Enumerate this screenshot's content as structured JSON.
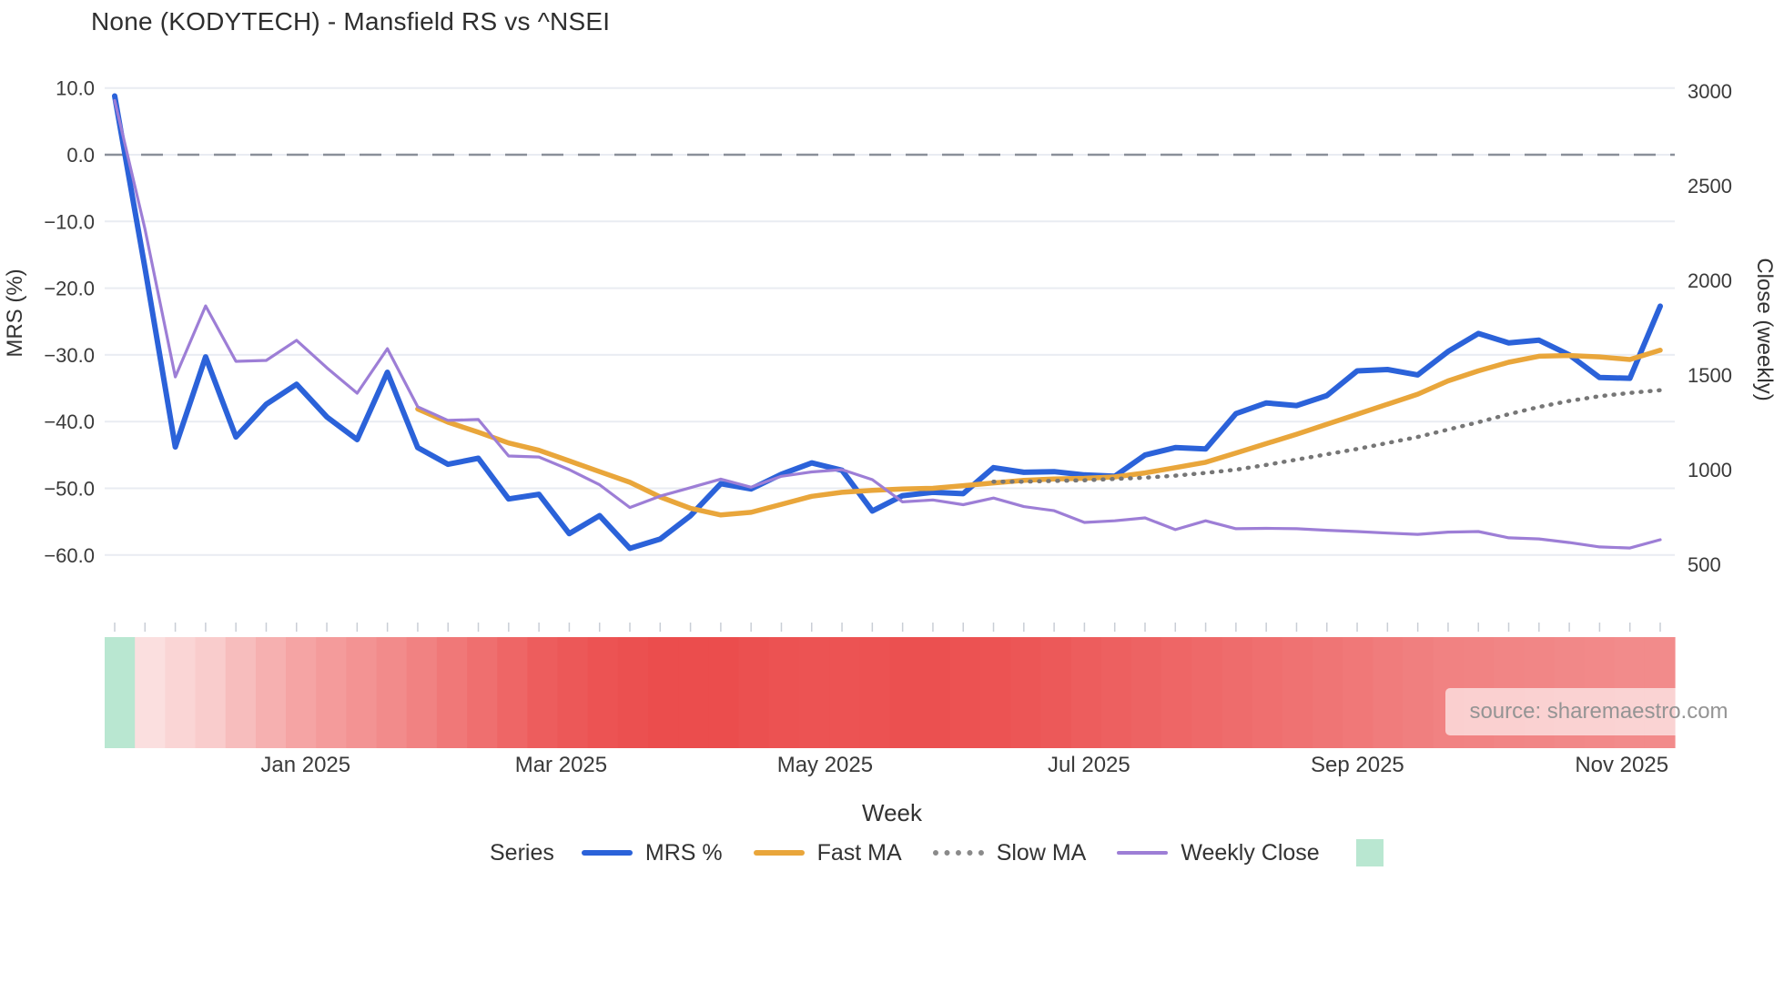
{
  "header": {
    "title": "None (KODYTECH) - Mansfield RS vs ^NSEI"
  },
  "axes": {
    "left_title": "MRS (%)",
    "right_title": "Close (weekly)",
    "x_title": "Week",
    "left_ticks": [
      {
        "label": "10.0",
        "value": 10
      },
      {
        "label": "0.0",
        "value": 0
      },
      {
        "label": "−10.0",
        "value": -10
      },
      {
        "label": "−20.0",
        "value": -20
      },
      {
        "label": "−30.0",
        "value": -30
      },
      {
        "label": "−40.0",
        "value": -40
      },
      {
        "label": "−50.0",
        "value": -50
      },
      {
        "label": "−60.0",
        "value": -60
      }
    ],
    "right_ticks": [
      {
        "label": "3000",
        "value": 3000
      },
      {
        "label": "2500",
        "value": 2500
      },
      {
        "label": "2000",
        "value": 2000
      },
      {
        "label": "1500",
        "value": 1500
      },
      {
        "label": "1000",
        "value": 1000
      },
      {
        "label": "500",
        "value": 500
      }
    ],
    "x_ticks": [
      {
        "label": "Jan 2025",
        "week": 6.3
      },
      {
        "label": "Mar 2025",
        "week": 14.73
      },
      {
        "label": "May 2025",
        "week": 23.44
      },
      {
        "label": "Jul 2025",
        "week": 32.15
      },
      {
        "label": "Sep 2025",
        "week": 41.01
      },
      {
        "label": "Nov 2025",
        "week": 49.73
      }
    ]
  },
  "legend": {
    "series_word": "Series",
    "items": [
      {
        "label": "MRS %",
        "swatch": "solid",
        "color": "#2b62d9"
      },
      {
        "label": "Fast MA",
        "swatch": "solid",
        "color": "#e9a63b"
      },
      {
        "label": "Slow MA",
        "swatch": "dotted",
        "color": "#8a8a8a"
      },
      {
        "label": "Weekly Close",
        "swatch": "solid",
        "color": "#9d7ed6"
      }
    ],
    "heat_square_color": "#b9e7d1"
  },
  "source": {
    "text": "source: sharemaestro.com"
  },
  "colors": {
    "mrs": "#2b62d9",
    "fast_ma": "#e9a63b",
    "slow_ma": "#767676",
    "weekly_close": "#9d7ed6",
    "zero_line": "#8a9099",
    "gridline": "#e9ecf2",
    "heat_green": "#b9e7d1",
    "heat_light": [
      252,
      232,
      232
    ],
    "heat_deep": [
      235,
      77,
      77
    ]
  },
  "chart_data": {
    "type": "line",
    "title": "None (KODYTECH) - Mansfield RS vs ^NSEI",
    "xlabel": "Week",
    "ylabel_left": "MRS (%)",
    "ylabel_right": "Close (weekly)",
    "ylim_left": [
      -65,
      12
    ],
    "ylim_right": [
      400,
      3050
    ],
    "grid": true,
    "legend_position": "bottom",
    "zero_reference_line": 0,
    "weeks": 52,
    "series": [
      {
        "name": "MRS %",
        "axis": "left",
        "style": "solid",
        "values": [
          8.8,
          -17.0,
          -43.8,
          -30.3,
          -42.3,
          -37.4,
          -34.4,
          -39.3,
          -42.7,
          -32.6,
          -43.9,
          -46.4,
          -45.5,
          -51.6,
          -50.9,
          -56.8,
          -54.1,
          -59.0,
          -57.6,
          -54.1,
          -49.3,
          -50.1,
          -47.9,
          -46.2,
          -47.3,
          -53.4,
          -51.1,
          -50.6,
          -50.8,
          -46.9,
          -47.6,
          -47.5,
          -48.0,
          -48.2,
          -45.0,
          -43.9,
          -44.1,
          -38.8,
          -37.2,
          -37.6,
          -36.1,
          -32.4,
          -32.2,
          -33.0,
          -29.5,
          -26.8,
          -28.2,
          -27.8,
          -30.0,
          -33.4,
          -33.5,
          -22.7
        ]
      },
      {
        "name": "Fast MA",
        "axis": "left",
        "style": "solid",
        "values": [
          null,
          null,
          null,
          null,
          null,
          null,
          null,
          null,
          null,
          null,
          -38.1,
          -40.1,
          -41.6,
          -43.2,
          -44.3,
          -45.9,
          -47.5,
          -49.1,
          -51.3,
          -53.0,
          -54.0,
          -53.6,
          -52.4,
          -51.2,
          -50.6,
          -50.3,
          -50.1,
          -50.0,
          -49.6,
          -49.2,
          -48.8,
          -48.6,
          -48.5,
          -48.3,
          -47.7,
          -46.9,
          -46.1,
          -44.7,
          -43.3,
          -41.9,
          -40.4,
          -38.9,
          -37.4,
          -35.9,
          -33.9,
          -32.4,
          -31.1,
          -30.2,
          -30.1,
          -30.3,
          -30.7,
          -29.3
        ]
      },
      {
        "name": "Slow MA",
        "axis": "left",
        "style": "dotted",
        "values": [
          null,
          null,
          null,
          null,
          null,
          null,
          null,
          null,
          null,
          null,
          null,
          null,
          null,
          null,
          null,
          null,
          null,
          null,
          null,
          null,
          null,
          null,
          null,
          null,
          null,
          null,
          null,
          null,
          null,
          -49.0,
          -49.0,
          -48.9,
          -48.8,
          -48.6,
          -48.4,
          -48.1,
          -47.7,
          -47.2,
          -46.5,
          -45.7,
          -44.9,
          -44.1,
          -43.2,
          -42.3,
          -41.2,
          -40.1,
          -38.9,
          -37.8,
          -36.9,
          -36.2,
          -35.7,
          -35.3
        ]
      },
      {
        "name": "Weekly Close",
        "axis": "right",
        "style": "solid",
        "values": [
          2950,
          2270,
          1490,
          1865,
          1572,
          1577,
          1683,
          1538,
          1404,
          1639,
          1332,
          1260,
          1265,
          1072,
          1067,
          1000,
          920,
          800,
          860,
          905,
          950,
          907,
          965,
          988,
          1000,
          947,
          830,
          840,
          815,
          850,
          805,
          783,
          721,
          730,
          745,
          683,
          730,
          688,
          690,
          688,
          680,
          673,
          665,
          658,
          670,
          673,
          640,
          634,
          615,
          592,
          586,
          630
        ]
      },
      {
        "name": "Heat band",
        "axis": "none",
        "style": "heatmap",
        "values": [
          "green",
          0.06,
          0.12,
          0.18,
          0.28,
          0.36,
          0.44,
          0.5,
          0.55,
          0.6,
          0.66,
          0.72,
          0.78,
          0.84,
          0.9,
          0.93,
          0.96,
          0.98,
          1.0,
          1.0,
          1.0,
          0.98,
          0.97,
          0.96,
          0.96,
          0.97,
          0.98,
          0.98,
          0.97,
          0.96,
          0.94,
          0.92,
          0.9,
          0.88,
          0.86,
          0.84,
          0.82,
          0.8,
          0.78,
          0.76,
          0.74,
          0.72,
          0.7,
          0.68,
          0.66,
          0.65,
          0.64,
          0.63,
          0.62,
          0.61,
          0.6,
          0.6
        ]
      }
    ]
  }
}
